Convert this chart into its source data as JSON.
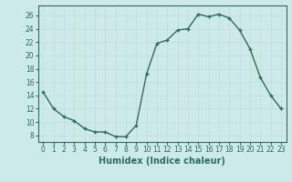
{
  "x": [
    0,
    1,
    2,
    3,
    4,
    5,
    6,
    7,
    8,
    9,
    10,
    11,
    12,
    13,
    14,
    15,
    16,
    17,
    18,
    19,
    20,
    21,
    22,
    23
  ],
  "y": [
    14.5,
    12,
    10.8,
    10.2,
    9.0,
    8.5,
    8.5,
    7.8,
    7.8,
    9.5,
    17.2,
    21.8,
    22.3,
    23.8,
    24.0,
    26.2,
    25.8,
    26.2,
    25.6,
    23.8,
    21.0,
    16.7,
    14.0,
    12.0
  ],
  "line_color": "#2e6b5e",
  "marker": "+",
  "bg_color": "#cdeaea",
  "grid_color": "#c8dede",
  "xlabel": "Humidex (Indice chaleur)",
  "ylabel_ticks": [
    8,
    10,
    12,
    14,
    16,
    18,
    20,
    22,
    24,
    26
  ],
  "xlim": [
    -0.5,
    23.5
  ],
  "ylim": [
    7.0,
    27.5
  ],
  "xticks": [
    0,
    1,
    2,
    3,
    4,
    5,
    6,
    7,
    8,
    9,
    10,
    11,
    12,
    13,
    14,
    15,
    16,
    17,
    18,
    19,
    20,
    21,
    22,
    23
  ],
  "tick_label_fontsize": 5.5,
  "xlabel_fontsize": 7.0,
  "line_width": 1.0,
  "marker_size": 3.0
}
